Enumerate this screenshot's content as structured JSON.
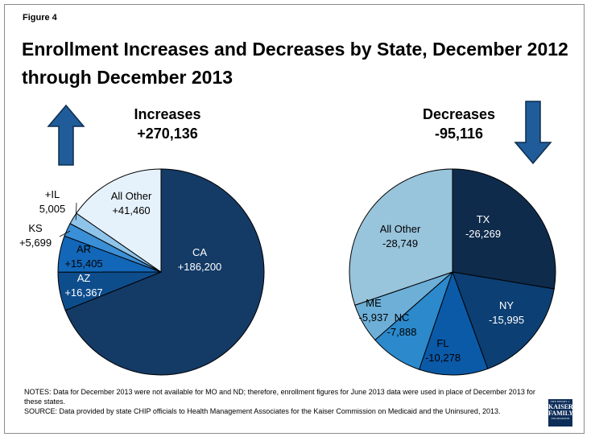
{
  "figure_label": "Figure 4",
  "title": "Enrollment Increases and Decreases by State, December 2012 through December 2013",
  "logo": {
    "line1": "THE HENRY J.",
    "line2a": "KAISER",
    "line2b": "FAMILY",
    "line3": "FOUNDATION"
  },
  "notes": {
    "line1": "NOTES: Data for December 2013 were not available for MO and ND; therefore, enrollment figures for June 2013 data were used in place of December 2013 for these states.",
    "line2": "SOURCE: Data provided by state CHIP officials to Health Management Associates for the Kaiser Commission on Medicaid and the Uninsured, 2013."
  },
  "colors": {
    "arrow": "#1f5c99",
    "arrow_stroke": "#0d2d4f",
    "outline": "#000000"
  },
  "chart_data": [
    {
      "type": "pie",
      "name": "increases",
      "title_line1": "Increases",
      "title_line2": "+270,136",
      "direction": "up",
      "slices": [
        {
          "label": "CA",
          "value_label": "+186,200",
          "value": 186200,
          "color": "#143a66",
          "text_color": "#ffffff"
        },
        {
          "label": "AZ",
          "value_label": "+16,367",
          "value": 16367,
          "color": "#0e4d8c",
          "text_color": "#ffffff"
        },
        {
          "label": "AR",
          "value_label": "+15,405",
          "value": 15405,
          "color": "#1267b8",
          "text_color": "#000000"
        },
        {
          "label": "KS",
          "value_label": "+5,699",
          "value": 5699,
          "color": "#3b8fd6",
          "text_color": "#000000"
        },
        {
          "label": "+IL",
          "value_label": "5,005",
          "value": 5005,
          "color": "#8fc4ea",
          "text_color": "#000000"
        },
        {
          "label": "All Other",
          "value_label": "+41,460",
          "value": 41460,
          "color": "#e6f2fb",
          "text_color": "#000000"
        }
      ]
    },
    {
      "type": "pie",
      "name": "decreases",
      "title_line1": "Decreases",
      "title_line2": "-95,116",
      "direction": "down",
      "slices": [
        {
          "label": "TX",
          "value_label": "-26,269",
          "value": 26269,
          "color": "#0f2b4c",
          "text_color": "#ffffff"
        },
        {
          "label": "NY",
          "value_label": "-15,995",
          "value": 15995,
          "color": "#0c3f73",
          "text_color": "#ffffff"
        },
        {
          "label": "FL",
          "value_label": "-10,278",
          "value": 10278,
          "color": "#0a5aa8",
          "text_color": "#000000"
        },
        {
          "label": "NC",
          "value_label": "-7,888",
          "value": 7888,
          "color": "#2b89cc",
          "text_color": "#000000"
        },
        {
          "label": "ME",
          "value_label": "-5,937",
          "value": 5937,
          "color": "#6eafd8",
          "text_color": "#000000"
        },
        {
          "label": "All Other",
          "value_label": "-28,749",
          "value": 28749,
          "color": "#98c4dc",
          "text_color": "#000000"
        }
      ]
    }
  ]
}
